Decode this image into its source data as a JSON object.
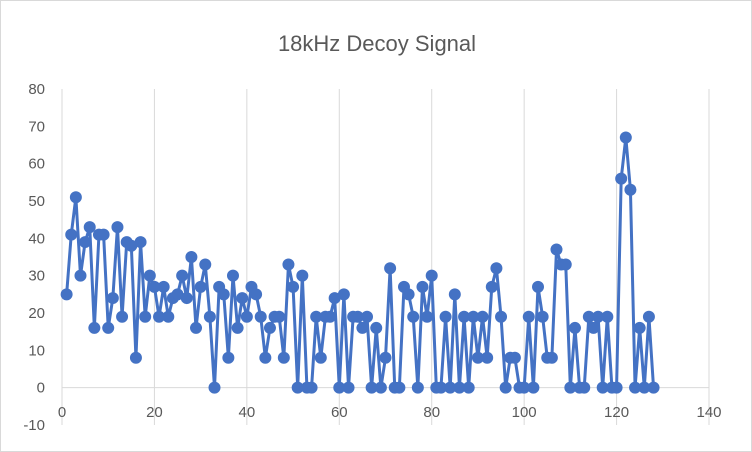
{
  "chart_data": {
    "type": "line",
    "title": "18kHz Decoy Signal",
    "xlabel": "",
    "ylabel": "",
    "xlim": [
      0,
      140
    ],
    "ylim": [
      -10,
      80
    ],
    "x_ticks": [
      0,
      20,
      40,
      60,
      80,
      100,
      120,
      140
    ],
    "y_ticks": [
      -10,
      0,
      10,
      20,
      30,
      40,
      50,
      60,
      70,
      80
    ],
    "grid": "vertical-major",
    "legend": "none",
    "series_color": "#4472c4",
    "x": [
      1,
      2,
      3,
      4,
      5,
      6,
      7,
      8,
      9,
      10,
      11,
      12,
      13,
      14,
      15,
      16,
      17,
      18,
      19,
      20,
      21,
      22,
      23,
      24,
      25,
      26,
      27,
      28,
      29,
      30,
      31,
      32,
      33,
      34,
      35,
      36,
      37,
      38,
      39,
      40,
      41,
      42,
      43,
      44,
      45,
      46,
      47,
      48,
      49,
      50,
      51,
      52,
      53,
      54,
      55,
      56,
      57,
      58,
      59,
      60,
      61,
      62,
      63,
      64,
      65,
      66,
      67,
      68,
      69,
      70,
      71,
      72,
      73,
      74,
      75,
      76,
      77,
      78,
      79,
      80,
      81,
      82,
      83,
      84,
      85,
      86,
      87,
      88,
      89,
      90,
      91,
      92,
      93,
      94,
      95,
      96,
      97,
      98,
      99,
      100,
      101,
      102,
      103,
      104,
      105,
      106,
      107,
      108,
      109,
      110,
      111,
      112,
      113,
      114,
      115,
      116,
      117,
      118,
      119,
      120,
      121,
      122,
      123,
      124,
      125,
      126,
      127,
      128
    ],
    "series": [
      {
        "values": [
          25,
          41,
          51,
          30,
          39,
          43,
          16,
          41,
          41,
          16,
          24,
          43,
          19,
          39,
          38,
          8,
          39,
          19,
          30,
          27,
          19,
          27,
          19,
          24,
          25,
          30,
          24,
          35,
          16,
          27,
          33,
          19,
          0,
          27,
          25,
          8,
          30,
          16,
          24,
          19,
          27,
          25,
          19,
          8,
          16,
          19,
          19,
          8,
          33,
          27,
          0,
          30,
          0,
          0,
          19,
          8,
          19,
          19,
          24,
          0,
          25,
          0,
          19,
          19,
          16,
          19,
          0,
          16,
          0,
          8,
          32,
          0,
          0,
          27,
          25,
          19,
          0,
          27,
          19,
          30,
          0,
          0,
          19,
          0,
          25,
          0,
          19,
          0,
          19,
          8,
          19,
          8,
          27,
          32,
          19,
          0,
          8,
          8,
          0,
          0,
          19,
          0,
          27,
          19,
          8,
          8,
          37,
          33,
          33,
          0,
          16,
          0,
          0,
          19,
          16,
          19,
          0,
          19,
          0,
          0,
          56,
          67,
          53,
          0,
          16,
          0,
          19,
          0
        ]
      }
    ]
  }
}
